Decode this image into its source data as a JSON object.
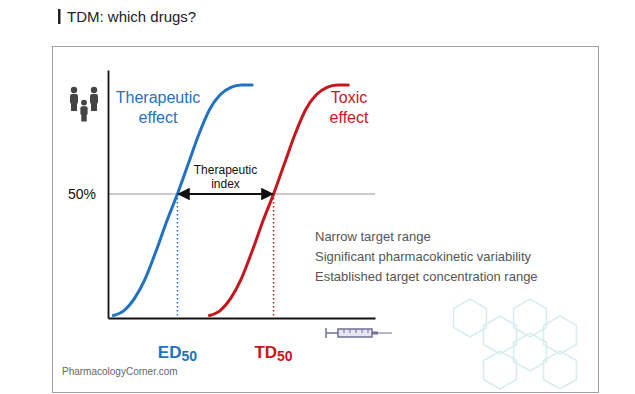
{
  "chart_data": {
    "type": "line",
    "title": "TDM: which drugs?",
    "x": [
      2,
      6,
      10,
      14,
      18,
      22,
      26,
      30,
      34,
      38,
      42,
      46,
      50,
      54,
      58,
      62,
      66,
      70,
      74,
      78,
      82,
      86,
      90
    ],
    "xlim": [
      0,
      100
    ],
    "ylim": [
      0,
      100
    ],
    "yticks": [
      {
        "value": 50,
        "label": "50%"
      }
    ],
    "grid": true,
    "tick_labels": "y",
    "series": [
      {
        "name": "Therapeutic effect",
        "color": "#2272c3",
        "values": [
          1,
          3,
          8,
          16,
          27,
          39,
          50,
          62,
          74,
          84,
          90,
          93,
          94,
          94,
          null,
          null,
          null,
          null,
          null,
          null,
          null,
          null,
          null
        ]
      },
      {
        "name": "Toxic effect",
        "color": "#c8161d",
        "values": [
          null,
          null,
          null,
          null,
          null,
          null,
          null,
          null,
          null,
          1,
          3,
          8,
          16,
          27,
          39,
          50,
          62,
          74,
          84,
          90,
          93,
          94,
          94
        ]
      }
    ],
    "markers": [
      {
        "label": "ED50",
        "x": 26,
        "y": 50,
        "color": "#2272c3"
      },
      {
        "label": "TD50",
        "x": 62,
        "y": 50,
        "color": "#c8161d"
      }
    ],
    "therapeutic_index": {
      "label": "Therapeutic index",
      "from": 26,
      "to": 62,
      "y": 50
    },
    "notes": [
      "Narrow target range",
      "Significant pharmacokinetic variability",
      "Established target concentration range"
    ],
    "source": "PharmacologyCorner.com"
  }
}
